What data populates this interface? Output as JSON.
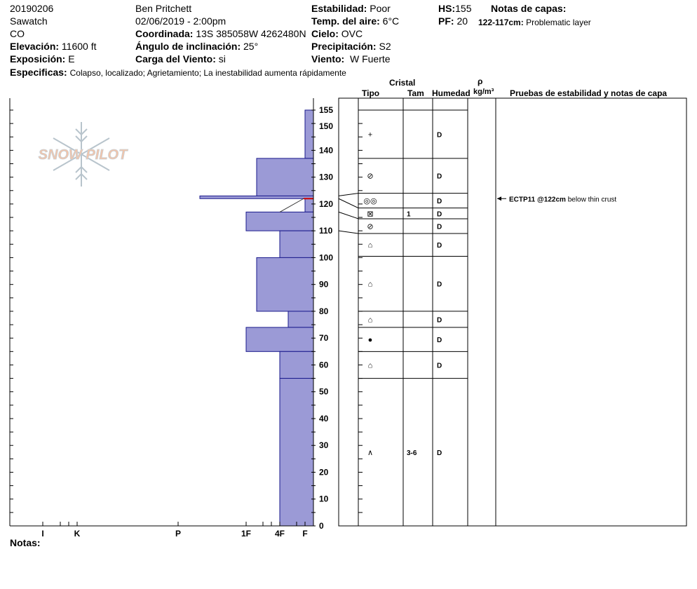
{
  "header": {
    "date_code": "20190206",
    "range": "Sawatch",
    "state": "CO",
    "elevation_label": "Elevación:",
    "elevation_value": "11600 ft",
    "aspect_label": "Exposición:",
    "aspect_value": "E",
    "specifics_label": "Especificas:",
    "specifics_value": "Colapso, localizado;  Agrietamiento;  La inestabilidad aumenta rápidamente",
    "observer": "Ben Pritchett",
    "datetime": "02/06/2019 - 2:00pm",
    "coord_label": "Coordinada:",
    "coord_value": "13S 385058W 4262480N",
    "slope_label": "Ángulo de inclinación:",
    "slope_value": "25°",
    "wind_load_label": "Carga del Viento:",
    "wind_load_value": "si",
    "stability_label": "Estabilidad:",
    "stability_value": "Poor",
    "air_temp_label": "Temp. del aire:",
    "air_temp_value": "6°C",
    "sky_label": "Cielo:",
    "sky_value": "OVC",
    "precip_label": "Precipitación:",
    "precip_value": "S2",
    "wind_label": "Viento:",
    "wind_value": "W Fuerte",
    "hs_label": "HS:",
    "hs_value": "155",
    "pf_label": "PF:",
    "pf_value": "20",
    "layer_notes_label": "Notas de capas:",
    "layer_note_range": "122-117cm:",
    "layer_note_text": "Problematic layer"
  },
  "logo_text": "SNOW PILOT",
  "notes_label": "Notas:",
  "table_headers": {
    "crystal": "Cristal",
    "type": "Tipo",
    "size": "Tam",
    "moisture": "Humedad",
    "density_symbol": "ρ",
    "density_unit": "kg/m³",
    "tests": "Pruebas de estabilidad y notas de capa"
  },
  "colors": {
    "hardness_fill": "#9b9ad6",
    "hardness_stroke": "#1a1a8c",
    "weak_layer": "#cc0000"
  },
  "chart_data": {
    "type": "snow_profile",
    "y_axis": {
      "min": 0,
      "max": 155,
      "major_ticks": [
        0,
        10,
        20,
        30,
        40,
        50,
        60,
        70,
        80,
        90,
        100,
        110,
        120,
        130,
        140,
        150,
        155
      ]
    },
    "x_axis": {
      "labels": [
        "I",
        "K",
        "P",
        "1F",
        "4F",
        "F"
      ]
    },
    "hardness_layers": [
      {
        "top": 155,
        "bottom": 137,
        "hardness": "F"
      },
      {
        "top": 137,
        "bottom": 123,
        "hardness": "4F+"
      },
      {
        "top": 123,
        "bottom": 122,
        "hardness": "P-"
      },
      {
        "top": 122,
        "bottom": 117,
        "hardness": "F"
      },
      {
        "top": 117,
        "bottom": 110,
        "hardness": "1F"
      },
      {
        "top": 110,
        "bottom": 100,
        "hardness": "4F"
      },
      {
        "top": 100,
        "bottom": 80,
        "hardness": "4F+"
      },
      {
        "top": 80,
        "bottom": 74,
        "hardness": "4F-"
      },
      {
        "top": 74,
        "bottom": 65,
        "hardness": "1F"
      },
      {
        "top": 65,
        "bottom": 55,
        "hardness": "4F"
      },
      {
        "top": 55,
        "bottom": 0,
        "hardness": "4F"
      }
    ],
    "weak_layer_depth": 122,
    "layers": [
      {
        "top": 155,
        "bottom": 137,
        "grain": "+",
        "size": "",
        "moisture": "D"
      },
      {
        "top": 137,
        "bottom": 124,
        "grain": "⊘",
        "size": "",
        "moisture": "D"
      },
      {
        "top": 124,
        "bottom": 118.5,
        "grain": "◎◎",
        "size": "",
        "moisture": "D"
      },
      {
        "top": 118.5,
        "bottom": 114.5,
        "grain": "⊠",
        "size": "1",
        "moisture": "D"
      },
      {
        "top": 114.5,
        "bottom": 109,
        "grain": "⊘",
        "size": "",
        "moisture": "D"
      },
      {
        "top": 109,
        "bottom": 100.5,
        "grain": "⌂",
        "size": "",
        "moisture": "D"
      },
      {
        "top": 100.5,
        "bottom": 80,
        "grain": "⌂",
        "size": "",
        "moisture": "D"
      },
      {
        "top": 80,
        "bottom": 74,
        "grain": "⌂",
        "size": "",
        "moisture": "D"
      },
      {
        "top": 74,
        "bottom": 65,
        "grain": "●",
        "size": "",
        "moisture": "D"
      },
      {
        "top": 65,
        "bottom": 55,
        "grain": "⌂",
        "size": "",
        "moisture": "D"
      },
      {
        "top": 55,
        "bottom": 0,
        "grain": "∧",
        "size": "3-6",
        "moisture": "D"
      }
    ],
    "tests": [
      {
        "depth": 122,
        "code": "ECTP11 @122cm",
        "note": "below thin crust"
      }
    ]
  }
}
